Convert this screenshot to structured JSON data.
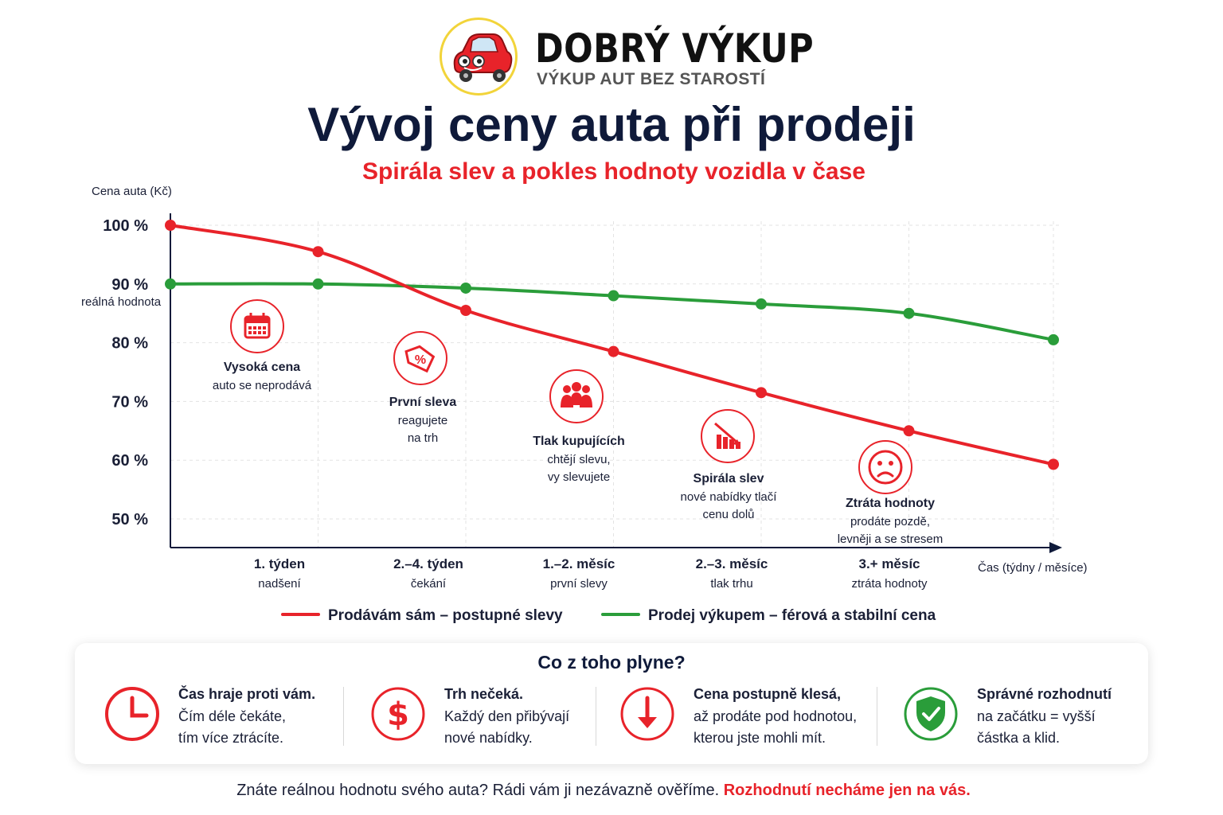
{
  "brand": {
    "name": "DOBRÝ VÝKUP",
    "tagline": "VÝKUP AUT BEZ STAROSTÍ"
  },
  "title": "Vývoj ceny auta při prodeji",
  "subtitle": "Spirála slev a pokles hodnoty vozidla v čase",
  "colors": {
    "red": "#e8232a",
    "green": "#2a9d3a",
    "navy": "#0f1a3a"
  },
  "chart_data": {
    "type": "line",
    "ylabel": "Cena auta (Kč)",
    "xlabel": "Čas (týdny / měsíce)",
    "ylim": [
      50,
      100
    ],
    "yticks": [
      {
        "value": 100,
        "label": "100 %"
      },
      {
        "value": 90,
        "label": "90 %"
      },
      {
        "value": 80,
        "label": "80 %"
      },
      {
        "value": 70,
        "label": "70 %"
      },
      {
        "value": 60,
        "label": "60 %"
      },
      {
        "value": 50,
        "label": "50 %"
      }
    ],
    "reference_note": "reálná hodnota",
    "grid": true,
    "categories": [
      {
        "label": "1. týden",
        "sub": "nadšení"
      },
      {
        "label": "2.–4. týden",
        "sub": "čekání"
      },
      {
        "label": "1.–2. měsíc",
        "sub": "první slevy"
      },
      {
        "label": "2.–3. měsíc",
        "sub": "tlak trhu"
      },
      {
        "label": "3.+ měsíc",
        "sub": "ztráta hodnoty"
      }
    ],
    "series": [
      {
        "name": "Prodávám sám – postupné slevy",
        "color": "#e8232a",
        "x": [
          0,
          1,
          2,
          3,
          4,
          5,
          6
        ],
        "values": [
          100,
          95.5,
          85.5,
          78.5,
          71.5,
          65,
          59.3
        ]
      },
      {
        "name": "Prodej výkupem – férová a stabilní cena",
        "color": "#2a9d3a",
        "x": [
          0,
          1,
          2,
          3,
          4,
          5,
          6
        ],
        "values": [
          90,
          90,
          89.3,
          88,
          86.6,
          85,
          80.5
        ]
      }
    ],
    "annotations": [
      {
        "icon": "calendar-icon",
        "title": "Vysoká cena",
        "lines": [
          "auto se neprodává"
        ]
      },
      {
        "icon": "price-tag-icon",
        "title": "První sleva",
        "lines": [
          "reagujete",
          "na trh"
        ]
      },
      {
        "icon": "people-icon",
        "title": "Tlak kupujících",
        "lines": [
          "chtějí slevu,",
          "vy slevujete"
        ]
      },
      {
        "icon": "falling-bars-icon",
        "title": "Spirála slev",
        "lines": [
          "nové nabídky tlačí",
          "cenu dolů"
        ]
      },
      {
        "icon": "sad-face-icon",
        "title": "Ztráta hodnoty",
        "lines": [
          "prodáte pozdě,",
          "levněji a se stresem"
        ]
      }
    ],
    "legend_position": "bottom"
  },
  "panel": {
    "title": "Co z toho plyne?",
    "tips": [
      {
        "icon": "clock-icon",
        "title": "Čas hraje proti vám.",
        "lines": [
          "Čím déle čekáte,",
          "tím více ztrácíte."
        ]
      },
      {
        "icon": "dollar-icon",
        "title": "Trh nečeká.",
        "lines": [
          "Každý den přibývají",
          "nové nabídky."
        ]
      },
      {
        "icon": "arrow-down-icon",
        "title": "Cena postupně klesá,",
        "lines": [
          "až prodáte pod hodnotou,",
          "kterou jste mohli mít."
        ]
      },
      {
        "icon": "shield-check-icon",
        "title": "Správné rozhodnutí",
        "lines": [
          "na začátku = vyšší",
          "částka a klid."
        ]
      }
    ]
  },
  "footer": {
    "text": "Znáte reálnou hodnotu svého auta? Rádi vám ji nezávazně ověříme.",
    "highlight": "Rozhodnutí necháme jen na vás."
  }
}
